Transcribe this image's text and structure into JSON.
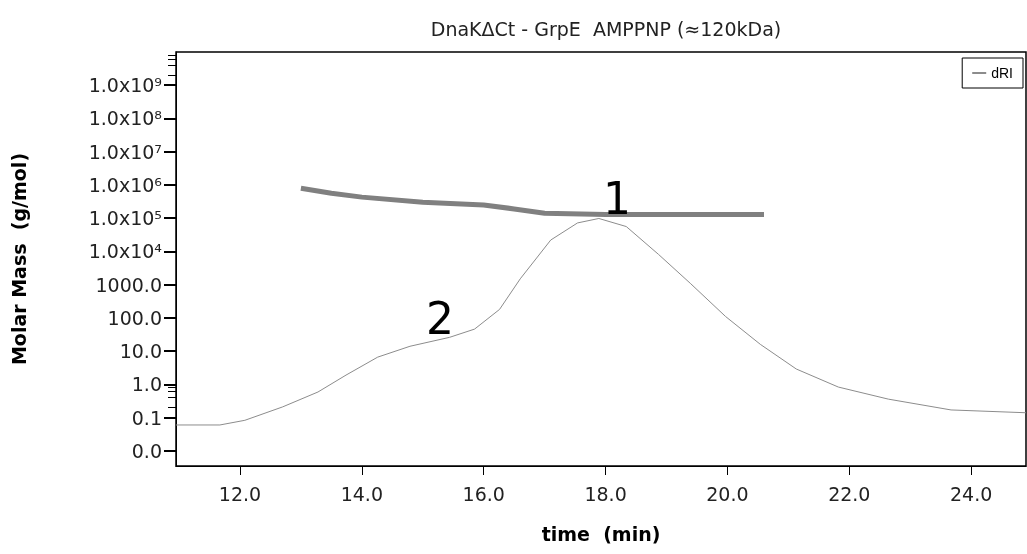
{
  "chart_data": {
    "type": "line",
    "title": "DnaKΔCt - GrpE  AMPPNP (≈120kDa)",
    "xlabel": "time  (min)",
    "ylabel": "Molar Mass  (g/mol)",
    "log": "y",
    "xlim": [
      10.95,
      24.9
    ],
    "xticks": [
      {
        "value": 12,
        "label": "12.0"
      },
      {
        "value": 14,
        "label": "14.0"
      },
      {
        "value": 16,
        "label": "16.0"
      },
      {
        "value": 18,
        "label": "18.0"
      },
      {
        "value": 20,
        "label": "20.0"
      },
      {
        "value": 22,
        "label": "22.0"
      },
      {
        "value": 24,
        "label": "24.0"
      }
    ],
    "ylim": [
      0.0035,
      10000000000
    ],
    "yticks": [
      {
        "value": 0.01,
        "label": "0.0"
      },
      0.1,
      {
        "value": 1,
        "label": "1.0"
      },
      {
        "value": 10,
        "label": "10.0"
      },
      {
        "value": 100,
        "label": "100.0"
      },
      {
        "value": 1000,
        "label": "1000.0"
      },
      {
        "value": 10000,
        "label": "1.0x10⁴"
      },
      {
        "value": 100000,
        "label": "1.0x10⁵"
      },
      {
        "value": 1000000,
        "label": "1.0x10⁶"
      },
      {
        "value": 10000000,
        "label": "1.0x10⁷"
      },
      {
        "value": 100000000,
        "label": "1.0x10⁸"
      },
      {
        "value": 1000000000,
        "label": "1.0x10⁹"
      }
    ],
    "grid": false,
    "legend": "top right",
    "marker": "none",
    "line_style": "solid",
    "series": [
      {
        "color": "#808080",
        "x": [
          13.0,
          13.5,
          14.0,
          15.0,
          16.0,
          16.5,
          17.0,
          18.0,
          19.0,
          20.6
        ],
        "values": [
          800000,
          560000,
          430000,
          300000,
          250000,
          190000,
          140000,
          130000,
          130000,
          130000
        ]
      },
      {
        "name": "dRI",
        "color": "#8c8c8c",
        "x": [
          10.95,
          11.67,
          12.08,
          12.7,
          13.28,
          13.74,
          14.26,
          14.79,
          15.44,
          15.85,
          16.26,
          16.6,
          17.1,
          17.54,
          17.89,
          18.34,
          18.87,
          19.39,
          19.97,
          20.54,
          21.13,
          21.82,
          22.64,
          23.67,
          24.9
        ],
        "values": [
          0.06,
          0.06,
          0.083,
          0.21,
          0.59,
          1.9,
          6.6,
          14,
          26,
          46,
          180,
          1500,
          22000,
          72000,
          98000,
          56000,
          8100,
          1100,
          110,
          16,
          2.9,
          0.83,
          0.36,
          0.17,
          0.14
        ]
      }
    ],
    "annotations": [
      "1",
      "2"
    ]
  }
}
